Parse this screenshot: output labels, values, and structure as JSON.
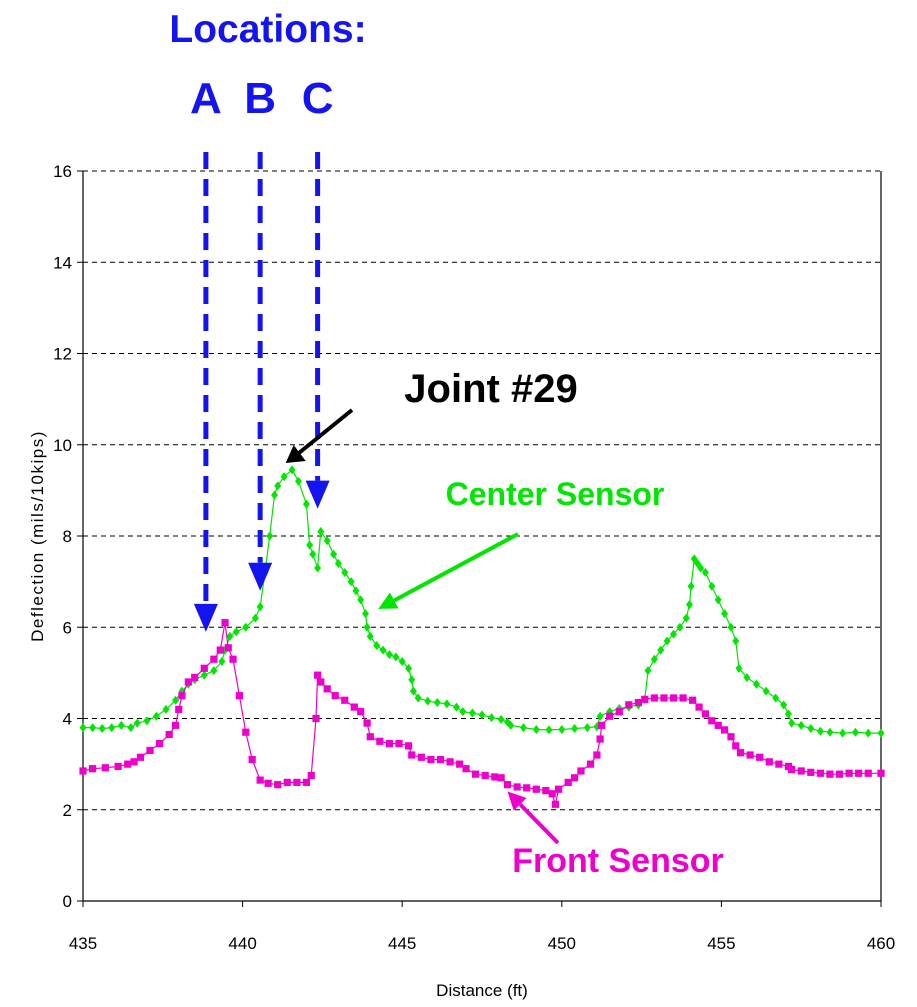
{
  "chart_data": {
    "type": "line",
    "xlabel": "Distance (ft)",
    "ylabel": "Deflection (mils/10kips)",
    "xlim": [
      435,
      460
    ],
    "ylim": [
      0,
      16
    ],
    "x_ticks": [
      435,
      440,
      445,
      450,
      455,
      460
    ],
    "y_ticks": [
      0,
      2,
      4,
      6,
      8,
      10,
      12,
      14,
      16
    ],
    "grid": "horizontal dashed",
    "series": [
      {
        "name": "Center Sensor",
        "color": "#00e600",
        "marker": "diamond",
        "points": [
          [
            435.0,
            3.8
          ],
          [
            435.3,
            3.8
          ],
          [
            435.6,
            3.78
          ],
          [
            435.9,
            3.8
          ],
          [
            436.2,
            3.85
          ],
          [
            436.5,
            3.8
          ],
          [
            436.7,
            3.9
          ],
          [
            437.0,
            3.95
          ],
          [
            437.3,
            4.05
          ],
          [
            437.6,
            4.2
          ],
          [
            437.9,
            4.4
          ],
          [
            438.1,
            4.6
          ],
          [
            438.3,
            4.75
          ],
          [
            438.5,
            4.85
          ],
          [
            438.8,
            4.95
          ],
          [
            439.1,
            5.05
          ],
          [
            439.35,
            5.25
          ],
          [
            439.45,
            5.5
          ],
          [
            439.6,
            5.8
          ],
          [
            439.8,
            5.9
          ],
          [
            440.1,
            6.0
          ],
          [
            440.4,
            6.2
          ],
          [
            440.55,
            6.45
          ],
          [
            440.7,
            7.2
          ],
          [
            440.85,
            8.0
          ],
          [
            441.0,
            8.9
          ],
          [
            441.1,
            9.1
          ],
          [
            441.3,
            9.3
          ],
          [
            441.55,
            9.45
          ],
          [
            441.75,
            9.2
          ],
          [
            442.0,
            8.7
          ],
          [
            442.1,
            7.8
          ],
          [
            442.2,
            7.6
          ],
          [
            442.35,
            7.3
          ],
          [
            442.45,
            8.1
          ],
          [
            442.65,
            7.9
          ],
          [
            442.85,
            7.6
          ],
          [
            443.0,
            7.4
          ],
          [
            443.2,
            7.2
          ],
          [
            443.4,
            7.0
          ],
          [
            443.55,
            6.8
          ],
          [
            443.7,
            6.6
          ],
          [
            443.85,
            6.3
          ],
          [
            443.9,
            6.0
          ],
          [
            444.0,
            5.8
          ],
          [
            444.2,
            5.6
          ],
          [
            444.4,
            5.5
          ],
          [
            444.6,
            5.4
          ],
          [
            444.8,
            5.35
          ],
          [
            445.0,
            5.25
          ],
          [
            445.2,
            5.1
          ],
          [
            445.3,
            4.85
          ],
          [
            445.35,
            4.6
          ],
          [
            445.5,
            4.45
          ],
          [
            445.8,
            4.38
          ],
          [
            446.1,
            4.35
          ],
          [
            446.4,
            4.32
          ],
          [
            446.7,
            4.25
          ],
          [
            446.9,
            4.15
          ],
          [
            447.2,
            4.12
          ],
          [
            447.5,
            4.08
          ],
          [
            447.8,
            4.02
          ],
          [
            448.1,
            3.98
          ],
          [
            448.3,
            3.92
          ],
          [
            448.4,
            3.85
          ],
          [
            448.8,
            3.8
          ],
          [
            449.2,
            3.76
          ],
          [
            449.6,
            3.75
          ],
          [
            450.0,
            3.76
          ],
          [
            450.4,
            3.78
          ],
          [
            450.8,
            3.8
          ],
          [
            451.1,
            3.82
          ],
          [
            451.2,
            4.05
          ],
          [
            451.5,
            4.15
          ],
          [
            451.8,
            4.22
          ],
          [
            452.1,
            4.25
          ],
          [
            452.4,
            4.3
          ],
          [
            452.6,
            4.42
          ],
          [
            452.7,
            5.05
          ],
          [
            452.9,
            5.3
          ],
          [
            453.1,
            5.5
          ],
          [
            453.3,
            5.7
          ],
          [
            453.5,
            5.85
          ],
          [
            453.7,
            6.0
          ],
          [
            453.9,
            6.2
          ],
          [
            454.0,
            6.5
          ],
          [
            454.05,
            6.9
          ],
          [
            454.15,
            7.5
          ],
          [
            454.25,
            7.4
          ],
          [
            454.35,
            7.3
          ],
          [
            454.5,
            7.2
          ],
          [
            454.7,
            6.9
          ],
          [
            454.9,
            6.6
          ],
          [
            455.1,
            6.3
          ],
          [
            455.3,
            6.0
          ],
          [
            455.45,
            5.7
          ],
          [
            455.55,
            5.1
          ],
          [
            455.8,
            4.9
          ],
          [
            456.1,
            4.75
          ],
          [
            456.4,
            4.6
          ],
          [
            456.7,
            4.45
          ],
          [
            456.95,
            4.3
          ],
          [
            457.1,
            4.1
          ],
          [
            457.2,
            3.9
          ],
          [
            457.5,
            3.85
          ],
          [
            457.8,
            3.78
          ],
          [
            458.1,
            3.72
          ],
          [
            458.4,
            3.7
          ],
          [
            458.8,
            3.68
          ],
          [
            459.2,
            3.7
          ],
          [
            459.6,
            3.68
          ],
          [
            460.0,
            3.68
          ]
        ]
      },
      {
        "name": "Front Sensor",
        "color": "#ee00cc",
        "marker": "square",
        "points": [
          [
            435.0,
            2.85
          ],
          [
            435.3,
            2.9
          ],
          [
            435.7,
            2.92
          ],
          [
            436.1,
            2.95
          ],
          [
            436.4,
            3.0
          ],
          [
            436.6,
            3.05
          ],
          [
            436.8,
            3.15
          ],
          [
            437.1,
            3.3
          ],
          [
            437.4,
            3.45
          ],
          [
            437.7,
            3.65
          ],
          [
            437.9,
            3.85
          ],
          [
            438.0,
            4.2
          ],
          [
            438.1,
            4.5
          ],
          [
            438.3,
            4.8
          ],
          [
            438.5,
            4.9
          ],
          [
            438.8,
            5.1
          ],
          [
            439.1,
            5.3
          ],
          [
            439.3,
            5.5
          ],
          [
            439.45,
            6.1
          ],
          [
            439.55,
            5.55
          ],
          [
            439.7,
            5.3
          ],
          [
            439.9,
            4.5
          ],
          [
            440.1,
            3.7
          ],
          [
            440.3,
            3.1
          ],
          [
            440.55,
            2.65
          ],
          [
            440.8,
            2.58
          ],
          [
            441.1,
            2.55
          ],
          [
            441.4,
            2.6
          ],
          [
            441.7,
            2.6
          ],
          [
            442.0,
            2.6
          ],
          [
            442.15,
            2.75
          ],
          [
            442.3,
            4.0
          ],
          [
            442.35,
            4.95
          ],
          [
            442.45,
            4.8
          ],
          [
            442.65,
            4.65
          ],
          [
            442.9,
            4.5
          ],
          [
            443.2,
            4.4
          ],
          [
            443.5,
            4.25
          ],
          [
            443.7,
            4.15
          ],
          [
            443.9,
            3.9
          ],
          [
            444.0,
            3.6
          ],
          [
            444.3,
            3.5
          ],
          [
            444.6,
            3.45
          ],
          [
            444.9,
            3.45
          ],
          [
            445.2,
            3.4
          ],
          [
            445.3,
            3.2
          ],
          [
            445.6,
            3.15
          ],
          [
            445.9,
            3.1
          ],
          [
            446.2,
            3.1
          ],
          [
            446.5,
            3.05
          ],
          [
            446.8,
            3.0
          ],
          [
            447.0,
            2.9
          ],
          [
            447.3,
            2.78
          ],
          [
            447.6,
            2.75
          ],
          [
            447.9,
            2.72
          ],
          [
            448.1,
            2.7
          ],
          [
            448.3,
            2.55
          ],
          [
            448.6,
            2.5
          ],
          [
            448.9,
            2.48
          ],
          [
            449.2,
            2.45
          ],
          [
            449.5,
            2.42
          ],
          [
            449.7,
            2.35
          ],
          [
            449.8,
            2.12
          ],
          [
            449.9,
            2.45
          ],
          [
            450.2,
            2.6
          ],
          [
            450.4,
            2.7
          ],
          [
            450.6,
            2.85
          ],
          [
            450.9,
            3.0
          ],
          [
            451.1,
            3.2
          ],
          [
            451.2,
            3.55
          ],
          [
            451.25,
            3.85
          ],
          [
            451.5,
            4.05
          ],
          [
            451.8,
            4.15
          ],
          [
            452.1,
            4.3
          ],
          [
            452.4,
            4.35
          ],
          [
            452.6,
            4.42
          ],
          [
            452.9,
            4.45
          ],
          [
            453.2,
            4.45
          ],
          [
            453.5,
            4.45
          ],
          [
            453.8,
            4.45
          ],
          [
            454.1,
            4.4
          ],
          [
            454.3,
            4.25
          ],
          [
            454.5,
            4.1
          ],
          [
            454.7,
            3.95
          ],
          [
            454.9,
            3.85
          ],
          [
            455.1,
            3.75
          ],
          [
            455.3,
            3.6
          ],
          [
            455.45,
            3.4
          ],
          [
            455.6,
            3.25
          ],
          [
            455.9,
            3.2
          ],
          [
            456.2,
            3.15
          ],
          [
            456.5,
            3.05
          ],
          [
            456.8,
            3.0
          ],
          [
            457.1,
            2.95
          ],
          [
            457.2,
            2.88
          ],
          [
            457.5,
            2.85
          ],
          [
            457.8,
            2.82
          ],
          [
            458.1,
            2.8
          ],
          [
            458.4,
            2.78
          ],
          [
            458.7,
            2.78
          ],
          [
            459.0,
            2.8
          ],
          [
            459.3,
            2.8
          ],
          [
            459.6,
            2.8
          ],
          [
            460.0,
            2.8
          ]
        ]
      }
    ],
    "annotations": [
      {
        "text": "Locations:",
        "kind": "heading"
      },
      {
        "text": "A",
        "kind": "location",
        "x": 438.85,
        "arrow_to_y": 5.9
      },
      {
        "text": "B",
        "kind": "location",
        "x": 440.55,
        "arrow_to_y": 6.8
      },
      {
        "text": "C",
        "kind": "location",
        "x": 442.35,
        "arrow_to_y": 8.6
      },
      {
        "text": "Joint #29",
        "kind": "label",
        "arrow_to": [
          441.35,
          9.6
        ]
      },
      {
        "text": "Center Sensor",
        "kind": "series-label",
        "arrow_to": [
          444.25,
          6.4
        ]
      },
      {
        "text": "Front Sensor",
        "kind": "series-label",
        "arrow_to": [
          448.3,
          2.4
        ]
      }
    ]
  },
  "colors": {
    "location_arrow": "#1414f0",
    "center": "#00e600",
    "front": "#ee00cc",
    "joint": "#000000"
  }
}
